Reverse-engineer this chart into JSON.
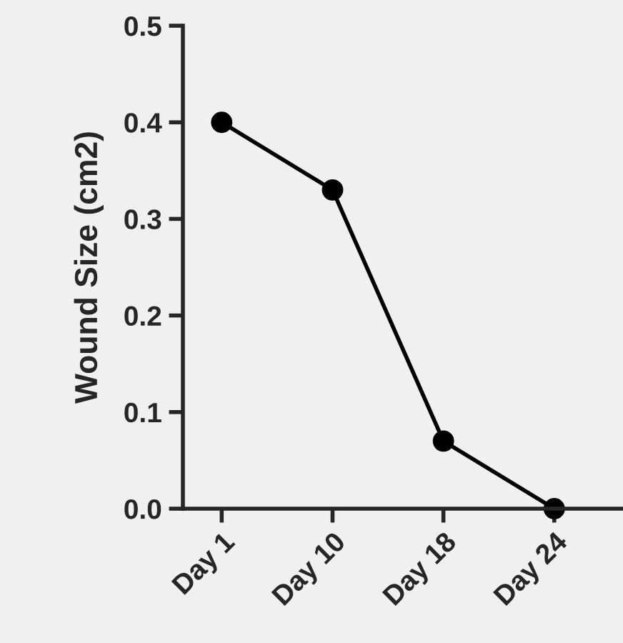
{
  "chart_data": {
    "type": "line",
    "ylabel": "Wound Size (cm2)",
    "categories": [
      "Day 1",
      "Day 10",
      "Day 18",
      "Day 24"
    ],
    "series": [
      {
        "color": "#000000",
        "values": [
          0.4,
          0.33,
          0.07,
          0.0
        ]
      }
    ],
    "ylim": [
      0,
      0.5
    ],
    "yticks": [
      {
        "value": 0,
        "label": "0.0"
      },
      0.1,
      0.2,
      0.3,
      0.4,
      0.5
    ],
    "marker": "circle",
    "line_style": "solid",
    "grid": false,
    "legend": false
  }
}
